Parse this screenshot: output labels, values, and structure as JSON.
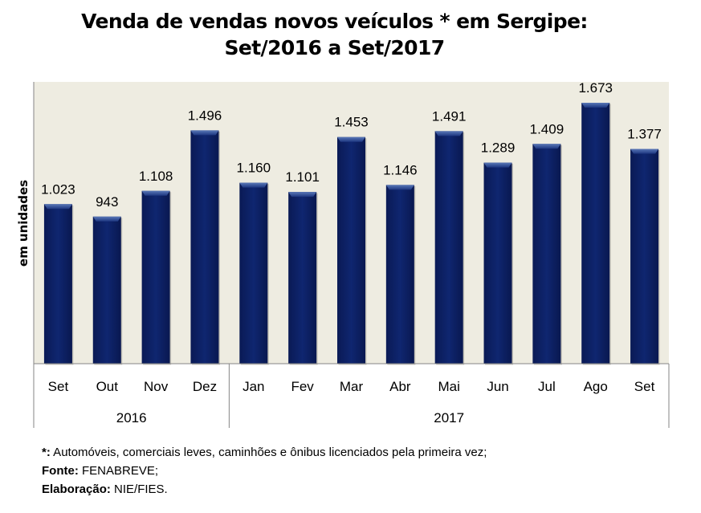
{
  "chart_data": {
    "type": "bar",
    "title": "Venda de vendas novos veículos * em Sergipe:",
    "subtitle": "Set/2016 a Set/2017",
    "xlabel": "",
    "ylabel": "em unidades",
    "ylim": [
      0,
      1800
    ],
    "grid": false,
    "categories": [
      "Set",
      "Out",
      "Nov",
      "Dez",
      "Jan",
      "Fev",
      "Mar",
      "Abr",
      "Mai",
      "Jun",
      "Jul",
      "Ago",
      "Set"
    ],
    "values": [
      1023,
      943,
      1108,
      1496,
      1160,
      1101,
      1453,
      1146,
      1491,
      1289,
      1409,
      1673,
      1377
    ],
    "value_labels": [
      "1.023",
      "943",
      "1.108",
      "1.496",
      "1.160",
      "1.101",
      "1.453",
      "1.146",
      "1.491",
      "1.289",
      "1.409",
      "1.673",
      "1.377"
    ],
    "groups": [
      {
        "label": "2016",
        "count": 4
      },
      {
        "label": "2017",
        "count": 9
      }
    ],
    "colors": {
      "bar": "#0d2266",
      "bar_highlight": "#3b5a9e",
      "plot_bg": "#eeece1",
      "axis": "#868686"
    }
  },
  "notes": {
    "footnote_key": "*:",
    "footnote_text": " Automóveis, comerciais leves, caminhões e ônibus licenciados pela primeira vez;",
    "source_key": "Fonte:",
    "source_text": " FENABREVE;",
    "elab_key": "Elaboração:",
    "elab_text": "  NIE/FIES."
  }
}
